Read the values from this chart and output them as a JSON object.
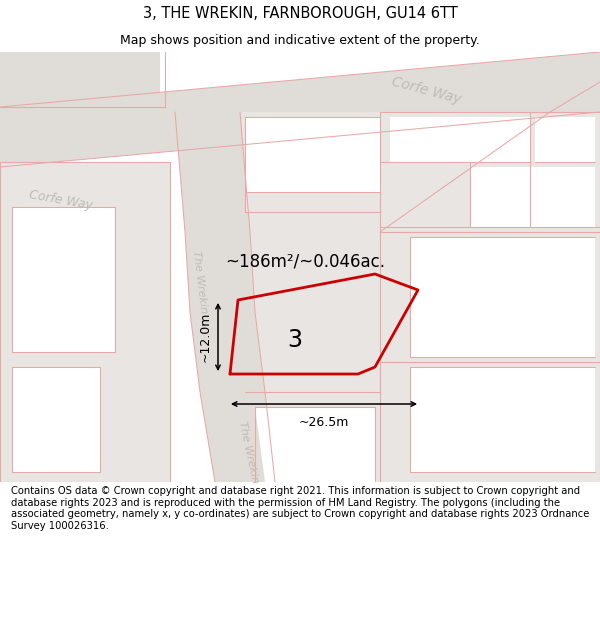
{
  "title": "3, THE WREKIN, FARNBOROUGH, GU14 6TT",
  "subtitle": "Map shows position and indicative extent of the property.",
  "footer": "Contains OS data © Crown copyright and database right 2021. This information is subject to Crown copyright and database rights 2023 and is reproduced with the permission of HM Land Registry. The polygons (including the associated geometry, namely x, y co-ordinates) are subject to Crown copyright and database rights 2023 Ordnance Survey 100026316.",
  "bg_color": "#f0eeec",
  "map_bg": "#f0eeec",
  "road_fill": "#e0dcd8",
  "block_fill": "#e8e5e2",
  "white_fill": "#ffffff",
  "pink_color": "#e8a8a8",
  "plot_color": "#cc0000",
  "area_label": "~186m²/~0.046ac.",
  "number_label": "3",
  "width_label": "~26.5m",
  "height_label": "~12.0m",
  "title_fontsize": 10.5,
  "subtitle_fontsize": 9.0,
  "footer_fontsize": 7.2,
  "corfe_way_label": "Corfe Way",
  "wrekin_label": "The Wrekin"
}
